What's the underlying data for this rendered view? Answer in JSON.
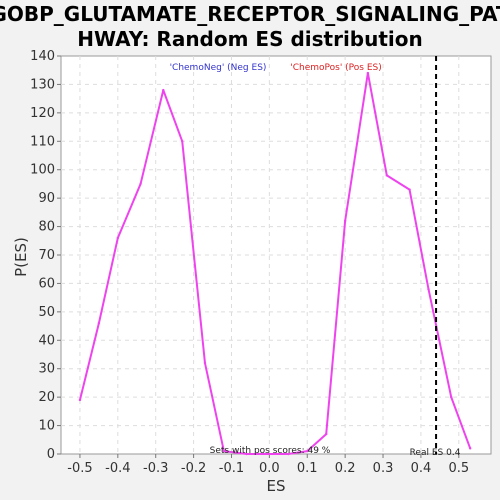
{
  "chart_data": {
    "type": "line",
    "title_line1": "GOBP_GLUTAMATE_RECEPTOR_SIGNALING_PAT",
    "title_line2": "HWAY: Random ES distribution",
    "xlabel": "ES",
    "ylabel": "P(ES)",
    "xlim": [
      -0.55,
      0.585
    ],
    "ylim": [
      0,
      140
    ],
    "x_ticks": [
      -0.5,
      -0.4,
      -0.3,
      -0.2,
      -0.1,
      0.0,
      0.1,
      0.2,
      0.3,
      0.4,
      0.5
    ],
    "x_tick_labels": [
      "-0.5",
      "-0.4",
      "-0.3",
      "-0.2",
      "-0.1",
      "0.0",
      "0.1",
      "0.2",
      "0.3",
      "0.4",
      "0.5"
    ],
    "y_ticks": [
      0,
      10,
      20,
      30,
      40,
      50,
      60,
      70,
      80,
      90,
      100,
      110,
      120,
      130,
      140
    ],
    "y_tick_labels": [
      "0",
      "10",
      "20",
      "30",
      "40",
      "50",
      "60",
      "70",
      "80",
      "90",
      "100",
      "110",
      "120",
      "130",
      "140"
    ],
    "grid": true,
    "series": [
      {
        "color": "#ee44ee",
        "x": [
          -0.5,
          -0.45,
          -0.4,
          -0.34,
          -0.28,
          -0.23,
          -0.17,
          -0.12,
          -0.06,
          0.0,
          0.05,
          0.1,
          0.15,
          0.2,
          0.26,
          0.31,
          0.37,
          0.42,
          0.48,
          0.53
        ],
        "y": [
          19,
          46,
          76,
          95,
          128,
          110,
          32,
          1,
          0,
          0,
          0,
          1,
          7,
          82,
          134,
          98,
          93,
          58,
          20,
          2
        ]
      }
    ],
    "real_es": 0.44,
    "annotations": {
      "neg_legend": "'ChemoNeg' (Neg ES)",
      "pos_legend": "'ChemoPos' (Pos ES)",
      "pos_scores": "Sets with pos scores: 49 %",
      "real_es_label": "Real ES 0.4"
    },
    "colors": {
      "line": "#ee44ee",
      "neg_legend": "#3333cc",
      "pos_legend": "#dd2222",
      "plot_bg": "#ffffff",
      "page_bg": "#f2f2f2"
    }
  }
}
